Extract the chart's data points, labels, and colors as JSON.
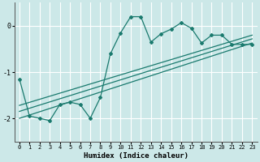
{
  "xlabel": "Humidex (Indice chaleur)",
  "bg_color": "#cce8e8",
  "grid_color": "#ffffff",
  "line_color": "#1a7a6e",
  "xlim": [
    -0.5,
    23.5
  ],
  "ylim": [
    -2.5,
    0.5
  ],
  "yticks": [
    0,
    -1,
    -2
  ],
  "xticks": [
    0,
    1,
    2,
    3,
    4,
    5,
    6,
    7,
    8,
    9,
    10,
    11,
    12,
    13,
    14,
    15,
    16,
    17,
    18,
    19,
    20,
    21,
    22,
    23
  ],
  "main_line_x": [
    0,
    1,
    2,
    3,
    4,
    5,
    6,
    7,
    8,
    9,
    10,
    11,
    12,
    13,
    14,
    15,
    16,
    17,
    18,
    19,
    20,
    21,
    22,
    23
  ],
  "main_line_y": [
    -1.15,
    -1.95,
    -2.0,
    -2.05,
    -1.7,
    -1.65,
    -1.7,
    -2.0,
    -1.55,
    -0.6,
    -0.15,
    0.2,
    0.2,
    -0.35,
    -0.17,
    -0.07,
    0.07,
    -0.05,
    -0.37,
    -0.2,
    -0.2,
    -0.4,
    -0.4,
    -0.4
  ],
  "trend_line1_x": [
    0,
    23
  ],
  "trend_line1_y": [
    -2.0,
    -0.37
  ],
  "trend_line2_x": [
    0,
    23
  ],
  "trend_line2_y": [
    -1.85,
    -0.28
  ],
  "trend_line3_x": [
    0,
    23
  ],
  "trend_line3_y": [
    -1.72,
    -0.2
  ]
}
